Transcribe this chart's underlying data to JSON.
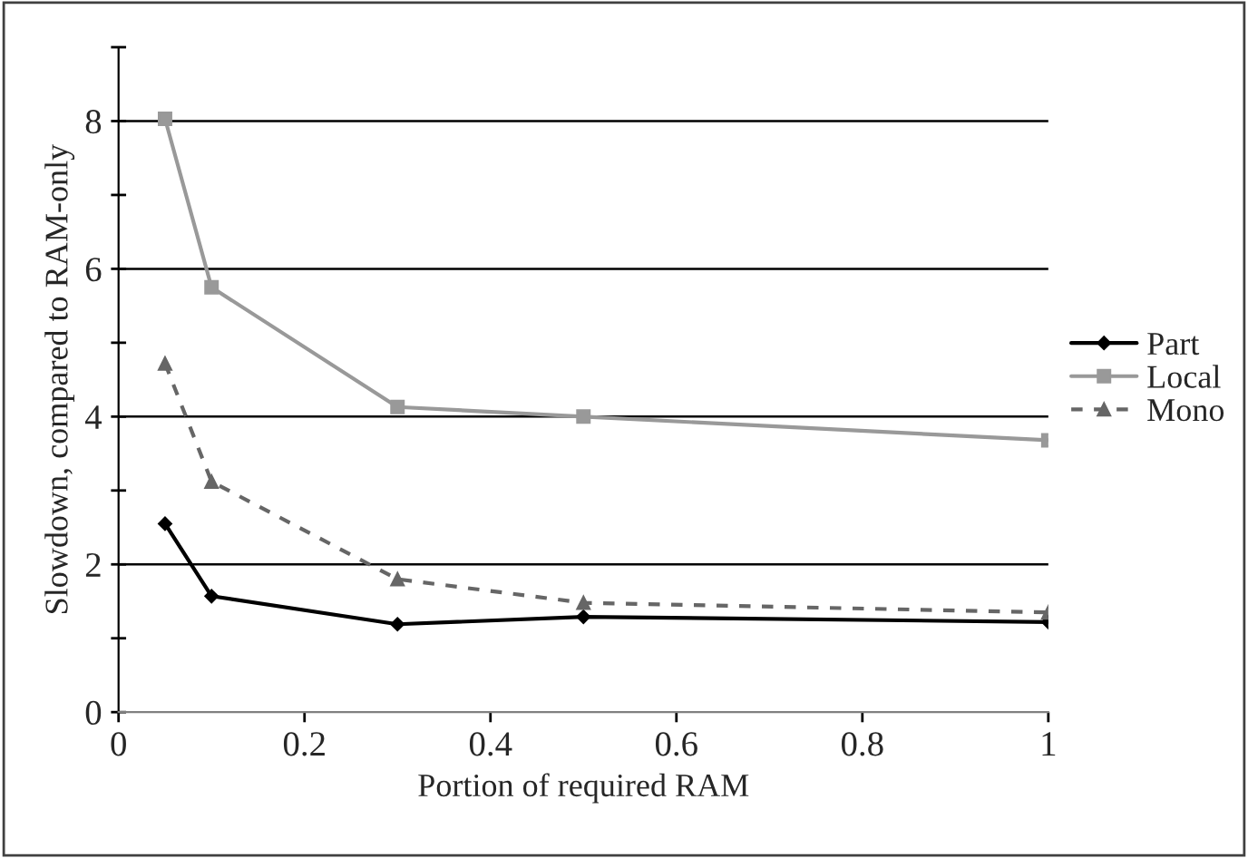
{
  "chart_data": {
    "type": "line",
    "xlabel": "Portion of required RAM",
    "ylabel": "Slowdown, compared to RAM-only",
    "x": [
      0.05,
      0.1,
      0.3,
      0.5,
      1
    ],
    "series": [
      {
        "name": "Part",
        "color": "#000000",
        "values": [
          2.55,
          1.57,
          1.19,
          1.29,
          1.22
        ],
        "marker": "diamond",
        "line_style": "solid"
      },
      {
        "name": "Local",
        "color": "#999999",
        "values": [
          8.03,
          5.75,
          4.13,
          4.0,
          3.68
        ],
        "marker": "square",
        "line_style": "solid"
      },
      {
        "name": "Mono",
        "color": "#666666",
        "values": [
          4.72,
          3.12,
          1.8,
          1.48,
          1.35
        ],
        "marker": "triangle",
        "line_style": "dashed"
      }
    ],
    "xlim": [
      0,
      1
    ],
    "xticks": [
      0,
      0.2,
      0.4,
      0.6,
      0.8,
      1
    ],
    "ylim": [
      0,
      9
    ],
    "yticks": [
      0,
      {
        "value": 1,
        "label": null
      },
      2,
      {
        "value": 3,
        "label": null
      },
      4,
      {
        "value": 5,
        "label": null
      },
      6,
      {
        "value": 7,
        "label": null
      },
      8,
      {
        "value": 9,
        "label": null
      }
    ],
    "grid": "y",
    "legend": "right"
  }
}
